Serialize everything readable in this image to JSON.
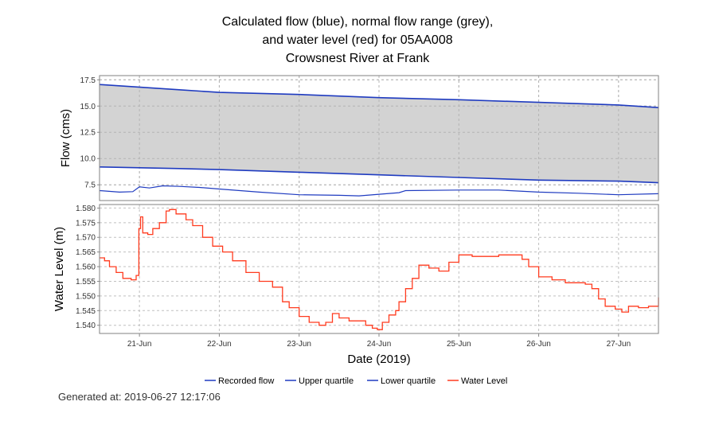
{
  "chart_data": {
    "type": "line",
    "title_lines": [
      "Calculated flow (blue), normal flow range (grey),",
      "and water level (red) for 05AA008",
      "Crowsnest River at Frank"
    ],
    "xlabel": "Date (2019)",
    "xlim": [
      "2019-06-20 12:00",
      "2019-06-27 12:00"
    ],
    "x_ticks": [
      {
        "date": "2019-06-21 00:00",
        "label": "21-Jun"
      },
      {
        "date": "2019-06-22 00:00",
        "label": "22-Jun"
      },
      {
        "date": "2019-06-23 00:00",
        "label": "23-Jun"
      },
      {
        "date": "2019-06-24 00:00",
        "label": "24-Jun"
      },
      {
        "date": "2019-06-25 00:00",
        "label": "25-Jun"
      },
      {
        "date": "2019-06-26 00:00",
        "label": "26-Jun"
      },
      {
        "date": "2019-06-27 00:00",
        "label": "27-Jun"
      }
    ],
    "grid": true,
    "legend_position": "bottom",
    "legend": [
      {
        "label": "Recorded flow",
        "color": "#1f3bc0"
      },
      {
        "label": "Upper quartile",
        "color": "#1f3bc0"
      },
      {
        "label": "Lower quartile",
        "color": "#1f3bc0"
      },
      {
        "label": "Water Level",
        "color": "#ff3b1f"
      }
    ],
    "colors": {
      "flow": "#1f3bc0",
      "level": "#ff3b1f",
      "range_fill": "#d3d3d3"
    },
    "flow_panel": {
      "ylabel": "Flow (cms)",
      "ylim": [
        6.0,
        17.9
      ],
      "y_ticks": [
        "7.5",
        "10.0",
        "12.5",
        "15.0",
        "17.5"
      ],
      "upper_quartile": [
        [
          "2019-06-20 12:00",
          17.05
        ],
        [
          "2019-06-21 12:00",
          16.55
        ],
        [
          "2019-06-22 00:00",
          16.3
        ],
        [
          "2019-06-23 00:00",
          16.1
        ],
        [
          "2019-06-24 00:00",
          15.8
        ],
        [
          "2019-06-25 00:00",
          15.6
        ],
        [
          "2019-06-26 00:00",
          15.35
        ],
        [
          "2019-06-27 00:00",
          15.1
        ],
        [
          "2019-06-27 12:00",
          14.85
        ]
      ],
      "lower_quartile": [
        [
          "2019-06-20 12:00",
          9.2
        ],
        [
          "2019-06-21 12:00",
          9.05
        ],
        [
          "2019-06-22 00:00",
          8.95
        ],
        [
          "2019-06-23 00:00",
          8.7
        ],
        [
          "2019-06-24 00:00",
          8.45
        ],
        [
          "2019-06-25 00:00",
          8.2
        ],
        [
          "2019-06-26 00:00",
          7.95
        ],
        [
          "2019-06-27 00:00",
          7.85
        ],
        [
          "2019-06-27 12:00",
          7.7
        ]
      ],
      "recorded_flow": [
        [
          "2019-06-20 12:00",
          6.95
        ],
        [
          "2019-06-20 18:00",
          6.8
        ],
        [
          "2019-06-20 22:00",
          6.85
        ],
        [
          "2019-06-21 00:00",
          7.3
        ],
        [
          "2019-06-21 03:00",
          7.2
        ],
        [
          "2019-06-21 07:00",
          7.4
        ],
        [
          "2019-06-21 12:00",
          7.35
        ],
        [
          "2019-06-21 18:00",
          7.25
        ],
        [
          "2019-06-22 00:00",
          7.1
        ],
        [
          "2019-06-22 12:00",
          6.8
        ],
        [
          "2019-06-23 00:00",
          6.55
        ],
        [
          "2019-06-23 12:00",
          6.5
        ],
        [
          "2019-06-23 18:00",
          6.45
        ],
        [
          "2019-06-24 00:00",
          6.6
        ],
        [
          "2019-06-24 06:00",
          6.75
        ],
        [
          "2019-06-24 08:00",
          6.95
        ],
        [
          "2019-06-25 00:00",
          7.0
        ],
        [
          "2019-06-25 12:00",
          7.0
        ],
        [
          "2019-06-26 00:00",
          6.8
        ],
        [
          "2019-06-26 12:00",
          6.7
        ],
        [
          "2019-06-27 00:00",
          6.55
        ],
        [
          "2019-06-27 12:00",
          6.65
        ]
      ]
    },
    "level_panel": {
      "ylabel": "Water Level (m)",
      "ylim": [
        1.5372,
        1.5812
      ],
      "y_ticks": [
        "1.540",
        "1.545",
        "1.550",
        "1.555",
        "1.560",
        "1.565",
        "1.570",
        "1.575",
        "1.580"
      ],
      "water_level": [
        [
          "2019-06-20 12:00",
          1.563
        ],
        [
          "2019-06-20 13:30",
          1.562
        ],
        [
          "2019-06-20 15:00",
          1.56
        ],
        [
          "2019-06-20 17:00",
          1.558
        ],
        [
          "2019-06-20 19:00",
          1.556
        ],
        [
          "2019-06-20 21:30",
          1.5555
        ],
        [
          "2019-06-20 23:00",
          1.557
        ],
        [
          "2019-06-20 23:50",
          1.573
        ],
        [
          "2019-06-21 00:20",
          1.577
        ],
        [
          "2019-06-21 01:00",
          1.5715
        ],
        [
          "2019-06-21 02:30",
          1.571
        ],
        [
          "2019-06-21 04:00",
          1.573
        ],
        [
          "2019-06-21 06:00",
          1.575
        ],
        [
          "2019-06-21 08:00",
          1.579
        ],
        [
          "2019-06-21 09:00",
          1.5795
        ],
        [
          "2019-06-21 11:00",
          1.578
        ],
        [
          "2019-06-21 14:00",
          1.576
        ],
        [
          "2019-06-21 16:00",
          1.574
        ],
        [
          "2019-06-21 19:00",
          1.57
        ],
        [
          "2019-06-21 22:00",
          1.567
        ],
        [
          "2019-06-22 01:00",
          1.565
        ],
        [
          "2019-06-22 04:00",
          1.562
        ],
        [
          "2019-06-22 08:00",
          1.558
        ],
        [
          "2019-06-22 12:00",
          1.555
        ],
        [
          "2019-06-22 16:00",
          1.553
        ],
        [
          "2019-06-22 19:00",
          1.548
        ],
        [
          "2019-06-22 21:00",
          1.546
        ],
        [
          "2019-06-23 00:00",
          1.543
        ],
        [
          "2019-06-23 03:00",
          1.541
        ],
        [
          "2019-06-23 06:00",
          1.54
        ],
        [
          "2019-06-23 08:00",
          1.541
        ],
        [
          "2019-06-23 10:00",
          1.544
        ],
        [
          "2019-06-23 12:00",
          1.5425
        ],
        [
          "2019-06-23 15:00",
          1.5415
        ],
        [
          "2019-06-23 18:00",
          1.5415
        ],
        [
          "2019-06-23 20:00",
          1.54
        ],
        [
          "2019-06-23 22:00",
          1.539
        ],
        [
          "2019-06-23 23:30",
          1.5385
        ],
        [
          "2019-06-24 01:00",
          1.541
        ],
        [
          "2019-06-24 03:00",
          1.5435
        ],
        [
          "2019-06-24 05:00",
          1.545
        ],
        [
          "2019-06-24 06:00",
          1.548
        ],
        [
          "2019-06-24 08:00",
          1.5525
        ],
        [
          "2019-06-24 10:00",
          1.556
        ],
        [
          "2019-06-24 12:00",
          1.5605
        ],
        [
          "2019-06-24 15:00",
          1.5595
        ],
        [
          "2019-06-24 18:00",
          1.5585
        ],
        [
          "2019-06-24 21:00",
          1.5615
        ],
        [
          "2019-06-25 00:00",
          1.564
        ],
        [
          "2019-06-25 04:00",
          1.5635
        ],
        [
          "2019-06-25 08:00",
          1.5635
        ],
        [
          "2019-06-25 12:00",
          1.564
        ],
        [
          "2019-06-25 16:00",
          1.564
        ],
        [
          "2019-06-25 19:00",
          1.5625
        ],
        [
          "2019-06-25 21:00",
          1.56
        ],
        [
          "2019-06-26 00:00",
          1.5565
        ],
        [
          "2019-06-26 04:00",
          1.5555
        ],
        [
          "2019-06-26 08:00",
          1.5545
        ],
        [
          "2019-06-26 12:00",
          1.5545
        ],
        [
          "2019-06-26 14:00",
          1.554
        ],
        [
          "2019-06-26 16:00",
          1.5525
        ],
        [
          "2019-06-26 18:00",
          1.549
        ],
        [
          "2019-06-26 20:00",
          1.5465
        ],
        [
          "2019-06-26 23:00",
          1.5455
        ],
        [
          "2019-06-27 01:00",
          1.5445
        ],
        [
          "2019-06-27 03:00",
          1.5465
        ],
        [
          "2019-06-27 06:00",
          1.546
        ],
        [
          "2019-06-27 09:00",
          1.5465
        ],
        [
          "2019-06-27 11:00",
          1.5465
        ],
        [
          "2019-06-27 12:00",
          1.5495
        ]
      ]
    }
  },
  "footer": {
    "generated_label": "Generated at:",
    "generated_value": "2019-06-27 12:17:06"
  }
}
